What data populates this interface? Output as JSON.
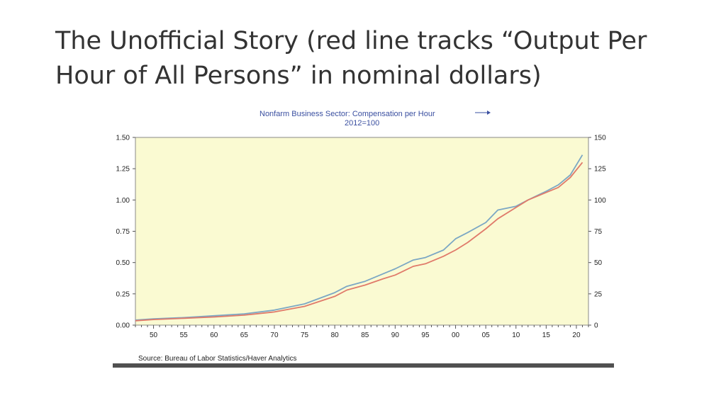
{
  "slide": {
    "title": "The Unofficial Story (red line tracks “Output Per Hour of All Persons” in nominal dollars)"
  },
  "chart_data": {
    "type": "line",
    "series_label": "Nonfarm Business Sector: Compensation per Hour",
    "series_sublabel": "2012=100",
    "source": "Source:  Bureau of Labor Statistics/Haver Analytics",
    "x_ticks": [
      "50",
      "55",
      "60",
      "65",
      "70",
      "75",
      "80",
      "85",
      "90",
      "95",
      "00",
      "05",
      "10",
      "15",
      "20"
    ],
    "x_tick_years": [
      1950,
      1955,
      1960,
      1965,
      1970,
      1975,
      1980,
      1985,
      1990,
      1995,
      2000,
      2005,
      2010,
      2015,
      2020
    ],
    "xlim": [
      1947,
      2022
    ],
    "left_axis": {
      "ylim": [
        0,
        1.5
      ],
      "ticks": [
        "0.00",
        "0.25",
        "0.50",
        "0.75",
        "1.00",
        "1.25",
        "1.50"
      ]
    },
    "right_axis": {
      "ylim": [
        0,
        150
      ],
      "ticks": [
        "0",
        "25",
        "50",
        "75",
        "100",
        "125",
        "150"
      ]
    },
    "background_color": "#fafad2",
    "series": [
      {
        "color": "#7ba7c4",
        "axis": "right",
        "x": [
          1947,
          1950,
          1955,
          1960,
          1965,
          1970,
          1975,
          1980,
          1982,
          1985,
          1988,
          1990,
          1993,
          1995,
          1998,
          2000,
          2002,
          2005,
          2007,
          2010,
          2012,
          2015,
          2017,
          2019,
          2021
        ],
        "y": [
          4,
          5,
          6,
          7.5,
          9,
          12,
          17,
          26,
          31,
          35,
          41,
          45,
          52,
          54,
          60,
          69,
          74,
          82,
          92,
          95,
          100,
          107,
          112,
          120,
          136
        ]
      },
      {
        "color": "#e07a6a",
        "axis": "right",
        "x": [
          1947,
          1950,
          1955,
          1960,
          1965,
          1970,
          1975,
          1980,
          1982,
          1985,
          1988,
          1990,
          1993,
          1995,
          1998,
          2000,
          2002,
          2005,
          2007,
          2010,
          2012,
          2015,
          2017,
          2019,
          2021
        ],
        "y": [
          3.5,
          4.5,
          5.5,
          6.5,
          8,
          10.5,
          15,
          23,
          28,
          32,
          37,
          40,
          47,
          49,
          55,
          60,
          66,
          77,
          85,
          94,
          100,
          106,
          110,
          118,
          130
        ]
      }
    ]
  }
}
